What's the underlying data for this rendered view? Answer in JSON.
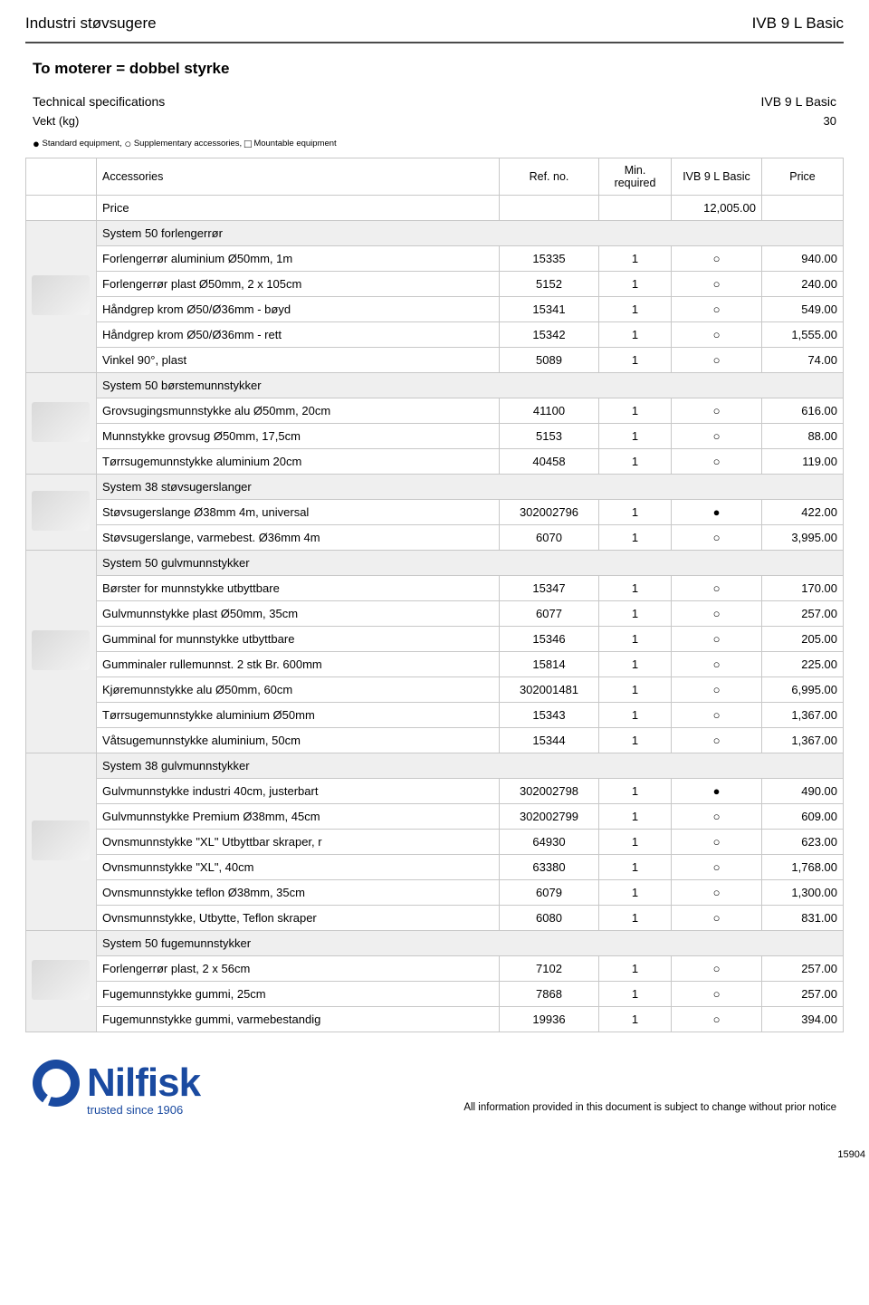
{
  "header": {
    "left": "Industri støvsugere",
    "right": "IVB 9 L Basic"
  },
  "subtitle": "To moterer = dobbel styrke",
  "spec": {
    "title_label": "Technical specifications",
    "title_value": "IVB 9 L Basic",
    "rows": [
      {
        "label": "Vekt (kg)",
        "value": "30"
      }
    ]
  },
  "legend": {
    "std": "Standard equipment,",
    "supp": "Supplementary accessories,",
    "mnt": "Mountable equipment"
  },
  "columns": {
    "c0": "",
    "c1": "Accessories",
    "c2": "Ref. no.",
    "c3": "Min. required",
    "c4": "IVB 9 L Basic",
    "c5": "Price"
  },
  "price_row": {
    "label": "Price",
    "value": "12,005.00"
  },
  "symbols": {
    "filled": "●",
    "hollow": "○",
    "square": "□"
  },
  "brand": {
    "name": "Nilfisk",
    "tagline": "trusted since 1906"
  },
  "disclaimer": "All information provided in this document is subject to change without prior notice",
  "page_number": "15904",
  "groups": [
    {
      "title": "System 50 forlengerrør",
      "rows": [
        {
          "name": "Forlengerrør aluminium Ø50mm, 1m",
          "ref": "15335",
          "min": "1",
          "sym": "○",
          "price": "940.00"
        },
        {
          "name": "Forlengerrør plast Ø50mm, 2 x 105cm",
          "ref": "5152",
          "min": "1",
          "sym": "○",
          "price": "240.00"
        },
        {
          "name": "Håndgrep krom Ø50/Ø36mm - bøyd",
          "ref": "15341",
          "min": "1",
          "sym": "○",
          "price": "549.00"
        },
        {
          "name": "Håndgrep krom Ø50/Ø36mm - rett",
          "ref": "15342",
          "min": "1",
          "sym": "○",
          "price": "1,555.00"
        },
        {
          "name": "Vinkel 90°, plast",
          "ref": "5089",
          "min": "1",
          "sym": "○",
          "price": "74.00"
        }
      ]
    },
    {
      "title": "System 50 børstemunnstykker",
      "rows": [
        {
          "name": "Grovsugingsmunnstykke alu Ø50mm, 20cm",
          "ref": "41100",
          "min": "1",
          "sym": "○",
          "price": "616.00"
        },
        {
          "name": "Munnstykke grovsug Ø50mm, 17,5cm",
          "ref": "5153",
          "min": "1",
          "sym": "○",
          "price": "88.00"
        },
        {
          "name": "Tørrsugemunnstykke aluminium 20cm",
          "ref": "40458",
          "min": "1",
          "sym": "○",
          "price": "119.00"
        }
      ]
    },
    {
      "title": "System 38 støvsugerslanger",
      "rows": [
        {
          "name": "Støvsugerslange Ø38mm 4m, universal",
          "ref": "302002796",
          "min": "1",
          "sym": "●",
          "price": "422.00"
        },
        {
          "name": "Støvsugerslange, varmebest. Ø36mm 4m",
          "ref": "6070",
          "min": "1",
          "sym": "○",
          "price": "3,995.00"
        }
      ]
    },
    {
      "title": "System 50 gulvmunnstykker",
      "rows": [
        {
          "name": "Børster for munnstykke utbyttbare",
          "ref": "15347",
          "min": "1",
          "sym": "○",
          "price": "170.00"
        },
        {
          "name": "Gulvmunnstykke plast Ø50mm, 35cm",
          "ref": "6077",
          "min": "1",
          "sym": "○",
          "price": "257.00"
        },
        {
          "name": "Gumminal for munnstykke utbyttbare",
          "ref": "15346",
          "min": "1",
          "sym": "○",
          "price": "205.00"
        },
        {
          "name": "Gumminaler rullemunnst. 2 stk Br. 600mm",
          "ref": "15814",
          "min": "1",
          "sym": "○",
          "price": "225.00"
        },
        {
          "name": "Kjøremunnstykke alu Ø50mm, 60cm",
          "ref": "302001481",
          "min": "1",
          "sym": "○",
          "price": "6,995.00"
        },
        {
          "name": "Tørrsugemunnstykke aluminium Ø50mm",
          "ref": "15343",
          "min": "1",
          "sym": "○",
          "price": "1,367.00"
        },
        {
          "name": "Våtsugemunnstykke aluminium, 50cm",
          "ref": "15344",
          "min": "1",
          "sym": "○",
          "price": "1,367.00"
        }
      ]
    },
    {
      "title": "System 38 gulvmunnstykker",
      "rows": [
        {
          "name": "Gulvmunnstykke industri 40cm, justerbart",
          "ref": "302002798",
          "min": "1",
          "sym": "●",
          "price": "490.00"
        },
        {
          "name": "Gulvmunnstykke Premium Ø38mm, 45cm",
          "ref": "302002799",
          "min": "1",
          "sym": "○",
          "price": "609.00"
        },
        {
          "name": "Ovnsmunnstykke \"XL\" Utbyttbar skraper, r",
          "ref": "64930",
          "min": "1",
          "sym": "○",
          "price": "623.00"
        },
        {
          "name": "Ovnsmunnstykke \"XL\", 40cm",
          "ref": "63380",
          "min": "1",
          "sym": "○",
          "price": "1,768.00"
        },
        {
          "name": "Ovnsmunnstykke teflon Ø38mm, 35cm",
          "ref": "6079",
          "min": "1",
          "sym": "○",
          "price": "1,300.00"
        },
        {
          "name": "Ovnsmunnstykke, Utbytte, Teflon skraper",
          "ref": "6080",
          "min": "1",
          "sym": "○",
          "price": "831.00"
        }
      ]
    },
    {
      "title": "System 50 fugemunnstykker",
      "rows": [
        {
          "name": "Forlengerrør plast, 2 x 56cm",
          "ref": "7102",
          "min": "1",
          "sym": "○",
          "price": "257.00"
        },
        {
          "name": "Fugemunnstykke gummi, 25cm",
          "ref": "7868",
          "min": "1",
          "sym": "○",
          "price": "257.00"
        },
        {
          "name": "Fugemunnstykke gummi, varmebestandig",
          "ref": "19936",
          "min": "1",
          "sym": "○",
          "price": "394.00"
        }
      ]
    }
  ]
}
